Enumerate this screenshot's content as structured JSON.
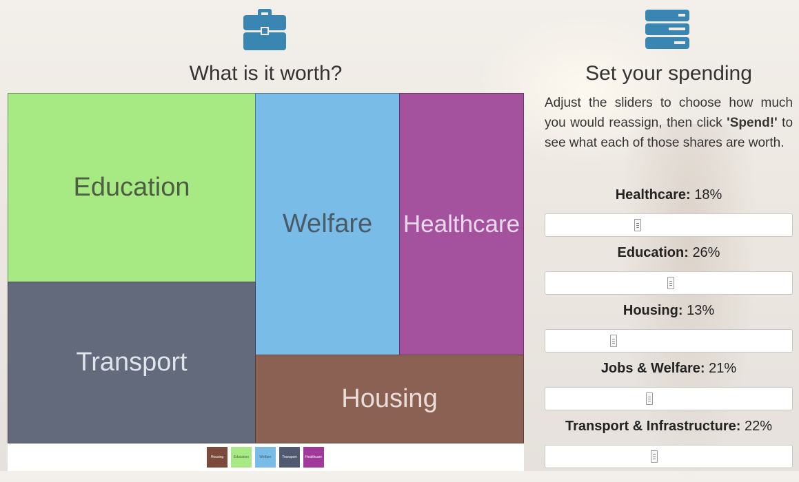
{
  "left": {
    "icon": "briefcase-icon",
    "title": "What is it worth?"
  },
  "treemap": {
    "tiles": [
      {
        "label": "Education",
        "color": "#a7ea83"
      },
      {
        "label": "Welfare",
        "color": "#79bce8"
      },
      {
        "label": "Healthcare",
        "color": "#a4529e"
      },
      {
        "label": "Transport",
        "color": "#636a7c"
      },
      {
        "label": "Housing",
        "color": "#8b6154"
      }
    ],
    "legend": [
      {
        "label": "Housing",
        "color": "#7b4a3a"
      },
      {
        "label": "Education",
        "color": "#a7ea83"
      },
      {
        "label": "Welfare",
        "color": "#79bce8"
      },
      {
        "label": "Transport",
        "color": "#4f5970"
      },
      {
        "label": "Healthcare",
        "color": "#a0399a"
      }
    ]
  },
  "right": {
    "icon": "server-stack-icon",
    "title": "Set your spending",
    "intro_pre": "Adjust the sliders to choose how much you would reassign, then click ",
    "intro_bold": "'Spend!'",
    "intro_post": " to see what each of those shares are worth."
  },
  "sliders": [
    {
      "name": "Healthcare:",
      "value": "18%",
      "level": 0.37
    },
    {
      "name": "Education:",
      "value": "26%",
      "level": 0.51
    },
    {
      "name": "Housing:",
      "value": "13%",
      "level": 0.27
    },
    {
      "name": "Jobs & Welfare:",
      "value": "21%",
      "level": 0.42
    },
    {
      "name": "Transport & Infrastructure:",
      "value": "22%",
      "level": 0.44
    }
  ],
  "colors": {
    "accent": "#3a86b2"
  }
}
